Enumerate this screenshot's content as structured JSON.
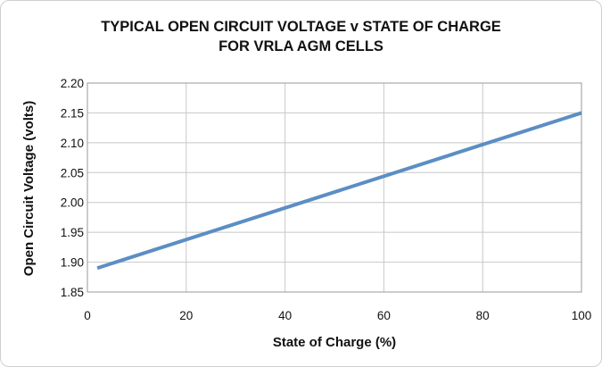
{
  "chart_data": {
    "type": "line",
    "title": [
      "TYPICAL OPEN CIRCUIT VOLTAGE v STATE OF CHARGE",
      "FOR VRLA AGM CELLS"
    ],
    "xlabel": "State of Charge (%)",
    "ylabel": "Open Circuit Voltage (volts)",
    "xlim": [
      0,
      100
    ],
    "ylim": [
      1.85,
      2.2
    ],
    "x_ticks": [
      "0",
      "20",
      "40",
      "60",
      "80",
      "100"
    ],
    "y_ticks": [
      "1.85",
      "1.90",
      "1.95",
      "2.00",
      "2.05",
      "2.10",
      "2.15",
      "2.20"
    ],
    "grid": true,
    "series": [
      {
        "color": "#5b8ec4",
        "x": [
          2,
          100
        ],
        "y": [
          1.89,
          2.15
        ]
      }
    ]
  }
}
